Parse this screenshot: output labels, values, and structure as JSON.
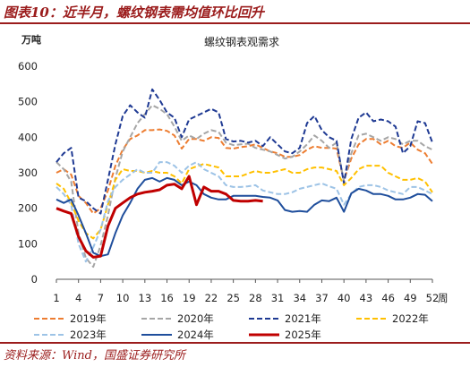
{
  "figure_title": "图表10：近半月，螺纹钢表需均值环比回升",
  "source_text": "资料来源：Wind，国盛证券研究所",
  "chart_data": {
    "type": "line",
    "title": "螺纹钢表观需求",
    "y_unit": "万吨",
    "x_unit": "周",
    "ylim": [
      0,
      600
    ],
    "yticks": [
      0,
      100,
      200,
      300,
      400,
      500,
      600
    ],
    "xlim": [
      1,
      52
    ],
    "xticks": [
      1,
      4,
      7,
      10,
      13,
      16,
      19,
      22,
      25,
      28,
      31,
      34,
      37,
      40,
      43,
      46,
      49,
      52
    ],
    "grid": false,
    "legend_position": "bottom",
    "series": [
      {
        "name": "2019年",
        "color": "#ed7d31",
        "style": "dashed",
        "width": 2,
        "values": [
          300,
          310,
          295,
          235,
          215,
          185,
          200,
          250,
          320,
          365,
          395,
          405,
          420,
          420,
          422,
          418,
          405,
          368,
          395,
          395,
          390,
          400,
          398,
          370,
          368,
          372,
          375,
          380,
          370,
          360,
          355,
          345,
          345,
          350,
          365,
          375,
          370,
          370,
          368,
          278,
          340,
          380,
          395,
          395,
          380,
          390,
          375,
          370,
          385,
          365,
          355,
          325
        ]
      },
      {
        "name": "2020年",
        "color": "#a6a6a6",
        "style": "dashed",
        "width": 2,
        "values": [
          330,
          310,
          275,
          130,
          60,
          35,
          95,
          180,
          285,
          360,
          400,
          440,
          465,
          490,
          480,
          465,
          430,
          390,
          405,
          395,
          410,
          420,
          415,
          385,
          378,
          380,
          382,
          370,
          365,
          360,
          350,
          340,
          345,
          360,
          380,
          405,
          390,
          370,
          385,
          275,
          355,
          405,
          410,
          400,
          390,
          400,
          395,
          380,
          390,
          390,
          375,
          365
        ]
      },
      {
        "name": "2021年",
        "color": "#1f3a93",
        "style": "dashed",
        "width": 2,
        "values": [
          330,
          355,
          370,
          230,
          220,
          200,
          185,
          280,
          380,
          460,
          490,
          470,
          455,
          535,
          505,
          470,
          455,
          400,
          450,
          460,
          470,
          480,
          470,
          395,
          388,
          390,
          385,
          390,
          375,
          400,
          380,
          360,
          355,
          370,
          440,
          460,
          420,
          400,
          390,
          270,
          395,
          455,
          470,
          445,
          450,
          445,
          430,
          355,
          375,
          445,
          440,
          385
        ]
      },
      {
        "name": "2022年",
        "color": "#ffc000",
        "style": "dashed",
        "width": 2,
        "values": [
          270,
          255,
          215,
          165,
          130,
          115,
          140,
          210,
          280,
          310,
          305,
          305,
          300,
          305,
          300,
          300,
          290,
          270,
          310,
          318,
          325,
          320,
          315,
          290,
          290,
          290,
          298,
          305,
          300,
          300,
          305,
          310,
          300,
          300,
          310,
          315,
          315,
          310,
          305,
          265,
          285,
          310,
          320,
          320,
          320,
          300,
          290,
          280,
          280,
          285,
          275,
          245
        ]
      },
      {
        "name": "2023年",
        "color": "#9dc3e6",
        "style": "dashed",
        "width": 2,
        "values": [
          260,
          240,
          210,
          100,
          50,
          90,
          140,
          220,
          260,
          280,
          295,
          310,
          300,
          300,
          330,
          330,
          320,
          300,
          320,
          330,
          310,
          300,
          290,
          265,
          260,
          260,
          262,
          265,
          250,
          245,
          240,
          240,
          245,
          255,
          260,
          265,
          270,
          262,
          255,
          210,
          240,
          260,
          265,
          265,
          260,
          250,
          245,
          240,
          260,
          260,
          250,
          240
        ]
      },
      {
        "name": "2024年",
        "color": "#1f4e9c",
        "style": "solid",
        "width": 2,
        "values": [
          225,
          215,
          225,
          180,
          130,
          75,
          65,
          70,
          130,
          180,
          215,
          255,
          280,
          285,
          275,
          285,
          280,
          265,
          275,
          265,
          240,
          230,
          225,
          225,
          235,
          235,
          235,
          235,
          232,
          230,
          222,
          195,
          190,
          192,
          190,
          210,
          222,
          220,
          230,
          190,
          242,
          255,
          250,
          240,
          240,
          235,
          225,
          225,
          230,
          240,
          238,
          220
        ]
      },
      {
        "name": "2025年",
        "color": "#c00000",
        "style": "solid",
        "width": 3,
        "values": [
          200,
          192,
          185,
          120,
          80,
          62,
          65,
          150,
          200,
          215,
          230,
          240,
          245,
          248,
          252,
          265,
          268,
          255,
          290,
          210,
          260,
          248,
          248,
          240,
          222,
          220,
          220,
          222,
          220
        ]
      }
    ]
  }
}
